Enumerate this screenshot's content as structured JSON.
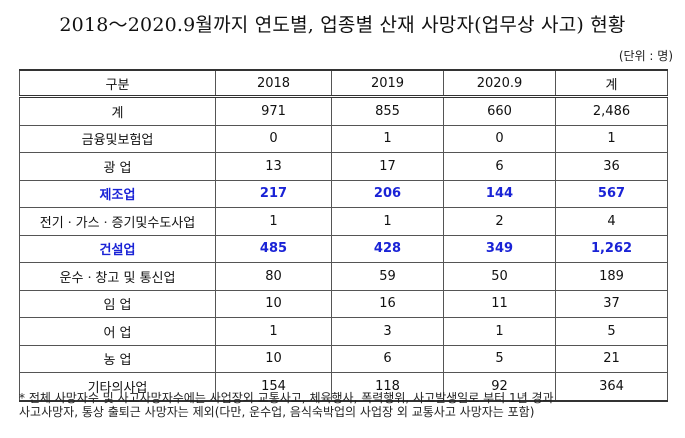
{
  "title": "2018～2020.9월까지 연도별, 업종별 산재 사망자(업무상 사고) 현황",
  "unit": "(단위 : 명)",
  "table": {
    "headers": [
      "구분",
      "2018",
      "2019",
      "2020.9",
      "계"
    ],
    "rows": [
      {
        "cells": [
          "계",
          "971",
          "855",
          "660",
          "2,486"
        ],
        "highlight": false
      },
      {
        "cells": [
          "금융및보험업",
          "0",
          "1",
          "0",
          "1"
        ],
        "highlight": false
      },
      {
        "cells": [
          "광 업",
          "13",
          "17",
          "6",
          "36"
        ],
        "highlight": false
      },
      {
        "cells": [
          "제조업",
          "217",
          "206",
          "144",
          "567"
        ],
        "highlight": true
      },
      {
        "cells": [
          "전기ㆍ가스ㆍ증기및수도사업",
          "1",
          "1",
          "2",
          "4"
        ],
        "highlight": false
      },
      {
        "cells": [
          "건설업",
          "485",
          "428",
          "349",
          "1,262"
        ],
        "highlight": true
      },
      {
        "cells": [
          "운수ㆍ창고 및 통신업",
          "80",
          "59",
          "50",
          "189"
        ],
        "highlight": false
      },
      {
        "cells": [
          "임 업",
          "10",
          "16",
          "11",
          "37"
        ],
        "highlight": false
      },
      {
        "cells": [
          "어 업",
          "1",
          "3",
          "1",
          "5"
        ],
        "highlight": false
      },
      {
        "cells": [
          "농 업",
          "10",
          "6",
          "5",
          "21"
        ],
        "highlight": false
      },
      {
        "cells": [
          "기타의사업",
          "154",
          "118",
          "92",
          "364"
        ],
        "highlight": false
      }
    ]
  },
  "footnote": {
    "line1": "* 전체 사망자수 및 사고사망자수에는 사업장외 교통사고, 체육행사, 폭력행위, 사고발생일로 부터 1년 경과",
    "line2": "사고사망자, 통상 출퇴근 사망자는 제외(다만, 운수업, 음식숙박업의 사업장 외 교통사고 사망자는 포함)"
  },
  "colors": {
    "highlight_text": "#1a23d6",
    "border": "#555555"
  }
}
